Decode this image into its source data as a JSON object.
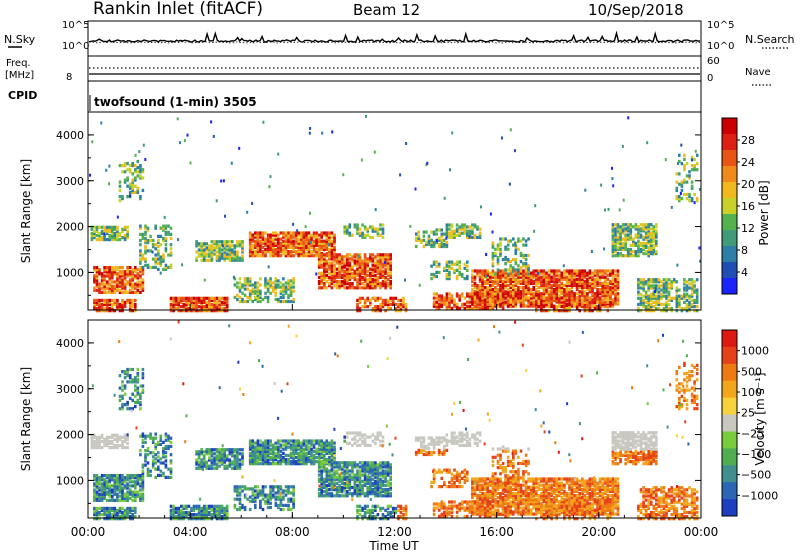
{
  "header": {
    "station": "Rankin Inlet (fitACF)",
    "beam": "Beam 12",
    "date": "10/Sep/2018"
  },
  "top_panels": {
    "nsky_label": "N.Sky",
    "nsearch_label": "N.Search",
    "freq_label_1": "Freq.",
    "freq_label_2": "[MHz]",
    "nave_label": "Nave",
    "cpid_label": "CPID",
    "cpid_text": "twofsound (1-min) 3505",
    "noise_left_ticks": [
      "10^5",
      "10^0"
    ],
    "noise_right_ticks": [
      "10^5",
      "10^0"
    ],
    "freq_left_ticks": [
      "8"
    ],
    "nave_right_ticks": [
      "60",
      "0"
    ]
  },
  "chart_data": [
    {
      "type": "heatmap",
      "panel": "power",
      "ylabel": "Slant Range [km]",
      "ylim": [
        180,
        4500
      ],
      "yticks": [
        1000,
        2000,
        3000,
        4000
      ],
      "xlim": [
        0,
        24
      ],
      "colorbar_label": "Power [dB]",
      "colorbar_ticks": [
        "28",
        "24",
        "20",
        "16",
        "12",
        "8",
        "4"
      ],
      "colorbar_range": [
        0,
        30
      ],
      "colors": [
        "#1b23ff",
        "#1f4fb3",
        "#2e7fa6",
        "#3f9a78",
        "#54b24e",
        "#c7d12a",
        "#f2b91f",
        "#f08a1a",
        "#e85515",
        "#dd2012",
        "#cc0000"
      ]
    },
    {
      "type": "heatmap",
      "panel": "velocity",
      "ylabel": "Slant Range [km]",
      "ylim": [
        180,
        4500
      ],
      "yticks": [
        1000,
        2000,
        3000,
        4000
      ],
      "xlim": [
        0,
        24
      ],
      "xticks": [
        "00:00",
        "04:00",
        "08:00",
        "12:00",
        "16:00",
        "20:00",
        "00:00"
      ],
      "xlabel": "Time UT",
      "colorbar_label": "Velocity [m s⁻¹]",
      "colorbar_ticks": [
        "1000",
        "500",
        "100",
        "25",
        "−25",
        "−100",
        "−500",
        "−1000"
      ],
      "colors": [
        "#1c3fc0",
        "#2a66b4",
        "#3f8f8f",
        "#4fae4f",
        "#7acc3c",
        "#c8c8c0",
        "#f7d23c",
        "#f2a61c",
        "#ee7a14",
        "#e6421a",
        "#dd1a12"
      ]
    }
  ]
}
